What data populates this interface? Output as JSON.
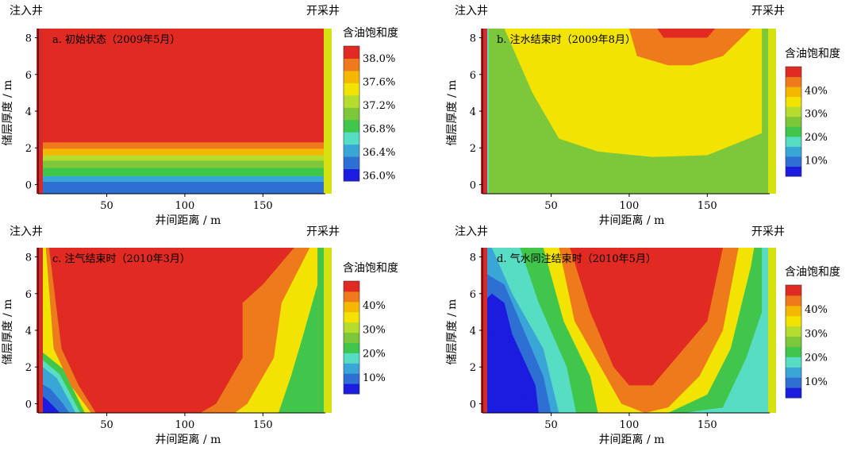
{
  "chart_data": [
    {
      "type": "heatmap",
      "title": "a. 初始状态（2009年5月）",
      "xlabel": "井间距离 / m",
      "ylabel": "储层厚度 / m",
      "xlim": [
        6,
        190
      ],
      "ylim": [
        -0.5,
        8.5
      ],
      "xticks": [
        50,
        100,
        150
      ],
      "yticks": [
        0,
        2,
        4,
        6,
        8
      ],
      "injection_well_label": "注入井",
      "production_well_label": "开采井",
      "colorbar": {
        "title": "含油饱和度",
        "min": 35.9,
        "max": 38.2,
        "ticks": [
          36.0,
          36.4,
          36.8,
          37.2,
          37.6,
          38.0
        ],
        "tick_labels": [
          "36.0%",
          "36.4%",
          "36.8%",
          "37.2%",
          "37.6%",
          "38.0%"
        ]
      },
      "bands": [
        {
          "y_top_left": 0.15,
          "y_top_right": 0.15,
          "value": 36.25
        },
        {
          "y_top_left": 0.45,
          "y_top_right": 0.45,
          "value": 36.5
        },
        {
          "y_top_left": 0.9,
          "y_top_right": 0.9,
          "value": 36.8
        },
        {
          "y_top_left": 1.3,
          "y_top_right": 1.3,
          "value": 37.0
        },
        {
          "y_top_left": 1.6,
          "y_top_right": 1.6,
          "value": 37.3
        },
        {
          "y_top_left": 1.95,
          "y_top_right": 1.95,
          "value": 37.6
        },
        {
          "y_top_left": 2.3,
          "y_top_right": 2.3,
          "value": 37.85
        }
      ],
      "background_value": 38.1
    },
    {
      "type": "heatmap",
      "title": "b. 注水结束时（2009年8月）",
      "xlabel": "井间距离 / m",
      "ylabel": "储层厚度 / m",
      "xlim": [
        6,
        190
      ],
      "ylim": [
        -0.5,
        8.5
      ],
      "xticks": [
        50,
        100,
        150
      ],
      "yticks": [
        0,
        2,
        4,
        6,
        8
      ],
      "injection_well_label": "注入井",
      "production_well_label": "开采井",
      "colorbar": {
        "title": "含油饱和度",
        "min": 3,
        "max": 50,
        "ticks": [
          10,
          20,
          30,
          40
        ],
        "tick_labels": [
          "10%",
          "20%",
          "30%",
          "40%"
        ]
      },
      "background_value": 26,
      "regions": [
        {
          "value": 16,
          "points": [
            [
              6,
              8.5
            ],
            [
              6,
              -0.5
            ],
            [
              10,
              -0.5
            ],
            [
              10,
              8.5
            ]
          ]
        },
        {
          "value": 33,
          "points": [
            [
              20,
              8.5
            ],
            [
              38,
              5.0
            ],
            [
              55,
              2.5
            ],
            [
              80,
              1.8
            ],
            [
              115,
              1.5
            ],
            [
              150,
              1.6
            ],
            [
              185,
              2.8
            ],
            [
              185,
              8.5
            ]
          ]
        },
        {
          "value": 42,
          "points": [
            [
              100,
              8.5
            ],
            [
              105,
              7.0
            ],
            [
              125,
              6.5
            ],
            [
              140,
              6.5
            ],
            [
              160,
              7.0
            ],
            [
              178,
              8.5
            ]
          ]
        },
        {
          "value": 47,
          "points": [
            [
              118,
              8.5
            ],
            [
              122,
              8.0
            ],
            [
              150,
              8.0
            ],
            [
              155,
              8.5
            ]
          ]
        }
      ]
    },
    {
      "type": "heatmap",
      "title": "c. 注气结束时（2010年3月）",
      "xlabel": "井间距离 / m",
      "ylabel": "储层厚度 / m",
      "xlim": [
        6,
        190
      ],
      "ylim": [
        -0.5,
        8.5
      ],
      "xticks": [
        50,
        100,
        150
      ],
      "yticks": [
        0,
        2,
        4,
        6,
        8
      ],
      "injection_well_label": "注入井",
      "production_well_label": "开采井",
      "colorbar": {
        "title": "含油饱和度",
        "min": 3,
        "max": 50,
        "ticks": [
          10,
          20,
          30,
          40
        ],
        "tick_labels": [
          "10%",
          "20%",
          "30%",
          "40%"
        ]
      },
      "background_value": 24,
      "regions": [
        {
          "value": 5,
          "points": [
            [
              6,
              1.2
            ],
            [
              14,
              0.8
            ],
            [
              22,
              0
            ],
            [
              26,
              -0.5
            ],
            [
              6,
              -0.5
            ]
          ]
        },
        {
          "value": 9,
          "points": [
            [
              6,
              1.7
            ],
            [
              16,
              1.0
            ],
            [
              24,
              0
            ],
            [
              26,
              -0.5
            ],
            [
              20,
              -0.5
            ],
            [
              12,
              0.2
            ],
            [
              6,
              0.6
            ]
          ]
        },
        {
          "value": 13,
          "points": [
            [
              6,
              2.2
            ],
            [
              18,
              1.4
            ],
            [
              27,
              0
            ],
            [
              30,
              -0.5
            ],
            [
              26,
              -0.5
            ],
            [
              22,
              0
            ],
            [
              14,
              0.8
            ],
            [
              6,
              1.2
            ]
          ]
        },
        {
          "value": 18,
          "points": [
            [
              6,
              2.6
            ],
            [
              20,
              1.6
            ],
            [
              30,
              0
            ],
            [
              33,
              -0.5
            ],
            [
              30,
              -0.5
            ],
            [
              27,
              0
            ],
            [
              18,
              1.4
            ],
            [
              6,
              2.2
            ]
          ]
        },
        {
          "value": 24,
          "points": [
            [
              6,
              3.0
            ],
            [
              22,
              1.9
            ],
            [
              33,
              0
            ],
            [
              36,
              -0.5
            ],
            [
              33,
              -0.5
            ],
            [
              30,
              0
            ],
            [
              20,
              1.6
            ],
            [
              6,
              2.6
            ]
          ]
        },
        {
          "value": 33,
          "points": [
            [
              6,
              8.5
            ],
            [
              11,
              8.5
            ],
            [
              16,
              3.0
            ],
            [
              27,
              1.0
            ],
            [
              40,
              -0.5
            ],
            [
              36,
              -0.5
            ],
            [
              33,
              0
            ],
            [
              22,
              1.9
            ],
            [
              6,
              3.0
            ]
          ]
        },
        {
          "value": 42,
          "points": [
            [
              11,
              8.5
            ],
            [
              13,
              8.5
            ],
            [
              21,
              3.0
            ],
            [
              32,
              1.0
            ],
            [
              43,
              -0.5
            ],
            [
              40,
              -0.5
            ],
            [
              27,
              1.0
            ],
            [
              16,
              3.0
            ]
          ]
        },
        {
          "value": 47,
          "points": [
            [
              13,
              8.5
            ],
            [
              185,
              8.5
            ],
            [
              185,
              -0.5
            ],
            [
              43,
              -0.5
            ],
            [
              32,
              1.0
            ],
            [
              21,
              3.0
            ]
          ]
        },
        {
          "value": 42,
          "points": [
            [
              185,
              8.5
            ],
            [
              170,
              8.5
            ],
            [
              150,
              6.5
            ],
            [
              137,
              5.5
            ],
            [
              137,
              2.5
            ],
            [
              120,
              0
            ],
            [
              110,
              -0.5
            ],
            [
              185,
              -0.5
            ]
          ]
        },
        {
          "value": 33,
          "points": [
            [
              185,
              8.5
            ],
            [
              180,
              8.5
            ],
            [
              162,
              5.5
            ],
            [
              157,
              2.5
            ],
            [
              140,
              0
            ],
            [
              132,
              -0.5
            ],
            [
              185,
              -0.5
            ]
          ]
        },
        {
          "value": 24,
          "points": [
            [
              185,
              6.5
            ],
            [
              175,
              3.5
            ],
            [
              168,
              1.5
            ],
            [
              160,
              -0.5
            ],
            [
              185,
              -0.5
            ]
          ]
        }
      ]
    },
    {
      "type": "heatmap",
      "title": "d. 气水同注结束时（2010年5月）",
      "xlabel": "井间距离 / m",
      "ylabel": "储层厚度 / m",
      "xlim": [
        6,
        190
      ],
      "ylim": [
        -0.5,
        8.5
      ],
      "xticks": [
        50,
        100,
        150
      ],
      "yticks": [
        0,
        2,
        4,
        6,
        8
      ],
      "injection_well_label": "注入井",
      "production_well_label": "开采井",
      "colorbar": {
        "title": "含油饱和度",
        "min": 3,
        "max": 50,
        "ticks": [
          10,
          20,
          30,
          40
        ],
        "tick_labels": [
          "10%",
          "20%",
          "30%",
          "40%"
        ]
      },
      "background_value": 20,
      "regions": [
        {
          "value": 13,
          "points": [
            [
              6,
              8.5
            ],
            [
              12,
              8.5
            ],
            [
              25,
              6.0
            ],
            [
              45,
              3.0
            ],
            [
              55,
              -0.5
            ],
            [
              6,
              -0.5
            ]
          ]
        },
        {
          "value": 9,
          "points": [
            [
              6,
              7.2
            ],
            [
              20,
              6.5
            ],
            [
              30,
              4.5
            ],
            [
              45,
              1.5
            ],
            [
              50,
              -0.5
            ],
            [
              6,
              -0.5
            ]
          ]
        },
        {
          "value": 5,
          "points": [
            [
              6,
              5.5
            ],
            [
              12,
              6.0
            ],
            [
              20,
              5.5
            ],
            [
              25,
              3.8
            ],
            [
              40,
              1.0
            ],
            [
              42,
              -0.5
            ],
            [
              6,
              -0.5
            ]
          ]
        },
        {
          "value": 6,
          "points": [
            [
              6,
              -0.5
            ],
            [
              6,
              3.5
            ],
            [
              14,
              4.0
            ],
            [
              25,
              2.0
            ],
            [
              38,
              -0.5
            ]
          ]
        },
        {
          "value": 24,
          "points": [
            [
              30,
              8.5
            ],
            [
              42,
              5.5
            ],
            [
              60,
              2.0
            ],
            [
              66,
              -0.5
            ],
            [
              135,
              -0.5
            ],
            [
              160,
              -0.2
            ],
            [
              175,
              2.5
            ],
            [
              185,
              5.0
            ],
            [
              185,
              8.5
            ]
          ]
        },
        {
          "value": 33,
          "points": [
            [
              45,
              8.5
            ],
            [
              58,
              4.5
            ],
            [
              75,
              1.5
            ],
            [
              80,
              -0.5
            ],
            [
              125,
              -0.5
            ],
            [
              150,
              0.5
            ],
            [
              165,
              3.0
            ],
            [
              178,
              7.5
            ],
            [
              180,
              8.5
            ]
          ]
        },
        {
          "value": 42,
          "points": [
            [
              55,
              8.5
            ],
            [
              65,
              4.5
            ],
            [
              85,
              1.5
            ],
            [
              95,
              0
            ],
            [
              110,
              -0.5
            ],
            [
              125,
              -0.2
            ],
            [
              145,
              1.5
            ],
            [
              160,
              4.0
            ],
            [
              170,
              8.5
            ]
          ]
        },
        {
          "value": 47,
          "points": [
            [
              62,
              8.5
            ],
            [
              75,
              5.0
            ],
            [
              90,
              2.0
            ],
            [
              100,
              1.0
            ],
            [
              115,
              1.0
            ],
            [
              130,
              2.5
            ],
            [
              150,
              4.5
            ],
            [
              160,
              8.5
            ]
          ]
        }
      ]
    }
  ]
}
